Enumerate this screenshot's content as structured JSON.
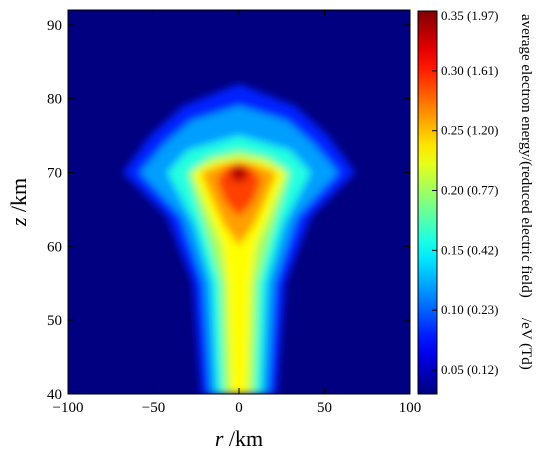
{
  "chart_data": {
    "type": "heatmap",
    "title": "",
    "xlabel": {
      "var": "r",
      "unit": " /km"
    },
    "ylabel": {
      "var": "z",
      "unit": " /km"
    },
    "xlim": [
      -100,
      100
    ],
    "ylim": [
      40,
      92
    ],
    "x_ticks": [
      -100,
      -50,
      0,
      50,
      100
    ],
    "x_tick_labels": [
      "−100",
      "−50",
      "0",
      "50",
      "100"
    ],
    "y_ticks": [
      40,
      50,
      60,
      70,
      80,
      90
    ],
    "y_tick_labels": [
      "40",
      "50",
      "60",
      "70",
      "80",
      "90"
    ],
    "colorbar": {
      "label": "average electron energy/(reduced electric field)",
      "unit": "/eV (Td)",
      "range": [
        0.03,
        0.35
      ],
      "ticks": [
        {
          "value": 0.05,
          "label": "0.05 (0.12)"
        },
        {
          "value": 0.1,
          "label": "0.10 (0.23)"
        },
        {
          "value": 0.15,
          "label": "0.15 (0.42)"
        },
        {
          "value": 0.2,
          "label": "0.20 (0.77)"
        },
        {
          "value": 0.25,
          "label": "0.25 (1.20)"
        },
        {
          "value": 0.3,
          "label": "0.30 (1.61)"
        },
        {
          "value": 0.35,
          "label": "0.35 (1.97)"
        }
      ],
      "colormap": "jet"
    },
    "background_value": 0.03,
    "field_levels": [
      {
        "value": 0.08,
        "outline_r": [
          [
            40,
            -22
          ],
          [
            55,
            -27
          ],
          [
            64,
            -42
          ],
          [
            70,
            -68
          ],
          [
            75,
            -52
          ],
          [
            79,
            -33
          ],
          [
            82,
            0
          ],
          [
            79,
            33
          ],
          [
            75,
            52
          ],
          [
            70,
            68
          ],
          [
            64,
            42
          ],
          [
            55,
            27
          ],
          [
            40,
            22
          ]
        ]
      },
      {
        "value": 0.12,
        "outline_r": [
          [
            40,
            -17
          ],
          [
            55,
            -21
          ],
          [
            64,
            -34
          ],
          [
            70,
            -58
          ],
          [
            74,
            -43
          ],
          [
            77,
            -28
          ],
          [
            79,
            0
          ],
          [
            77,
            28
          ],
          [
            74,
            43
          ],
          [
            70,
            58
          ],
          [
            64,
            34
          ],
          [
            55,
            21
          ],
          [
            40,
            17
          ]
        ]
      },
      {
        "value": 0.16,
        "outline_r": [
          [
            40,
            -13
          ],
          [
            55,
            -16
          ],
          [
            63,
            -26
          ],
          [
            70,
            -42
          ],
          [
            73,
            -30
          ],
          [
            75,
            0
          ],
          [
            73,
            30
          ],
          [
            70,
            42
          ],
          [
            63,
            26
          ],
          [
            55,
            16
          ],
          [
            40,
            13
          ]
        ]
      },
      {
        "value": 0.2,
        "outline_r": [
          [
            40,
            -9
          ],
          [
            55,
            -11
          ],
          [
            61,
            -18
          ],
          [
            70,
            -30
          ],
          [
            72,
            -18
          ],
          [
            73,
            0
          ],
          [
            72,
            18
          ],
          [
            70,
            30
          ],
          [
            61,
            18
          ],
          [
            55,
            11
          ],
          [
            40,
            9
          ]
        ]
      },
      {
        "value": 0.23,
        "outline_r": [
          [
            40,
            -5
          ],
          [
            55,
            -7
          ],
          [
            60,
            -10
          ],
          [
            64,
            -17
          ],
          [
            70,
            -27
          ],
          [
            71.5,
            -14
          ],
          [
            72,
            0
          ],
          [
            71.5,
            14
          ],
          [
            70,
            27
          ],
          [
            64,
            17
          ],
          [
            60,
            10
          ],
          [
            55,
            7
          ],
          [
            40,
            5
          ]
        ]
      },
      {
        "value": 0.26,
        "outline_r": [
          [
            60,
            0
          ],
          [
            63,
            -9
          ],
          [
            66,
            -15
          ],
          [
            70,
            -22
          ],
          [
            71,
            -11
          ],
          [
            71.5,
            0
          ],
          [
            71,
            11
          ],
          [
            70,
            22
          ],
          [
            66,
            15
          ],
          [
            63,
            9
          ]
        ]
      },
      {
        "value": 0.29,
        "outline_r": [
          [
            64,
            0
          ],
          [
            66,
            -8
          ],
          [
            69,
            -13
          ],
          [
            71,
            -6
          ],
          [
            71.3,
            0
          ],
          [
            71,
            6
          ],
          [
            69,
            13
          ],
          [
            66,
            8
          ]
        ]
      },
      {
        "value": 0.33,
        "outline_r": [
          [
            68.5,
            0
          ],
          [
            69.5,
            -6
          ],
          [
            70.7,
            -3
          ],
          [
            71,
            0
          ],
          [
            70.7,
            3
          ],
          [
            69.5,
            6
          ]
        ]
      },
      {
        "value": 0.35,
        "outline_r": [
          [
            69.8,
            0
          ],
          [
            70.2,
            -3
          ],
          [
            70.7,
            0
          ],
          [
            70.2,
            3
          ]
        ]
      }
    ]
  }
}
